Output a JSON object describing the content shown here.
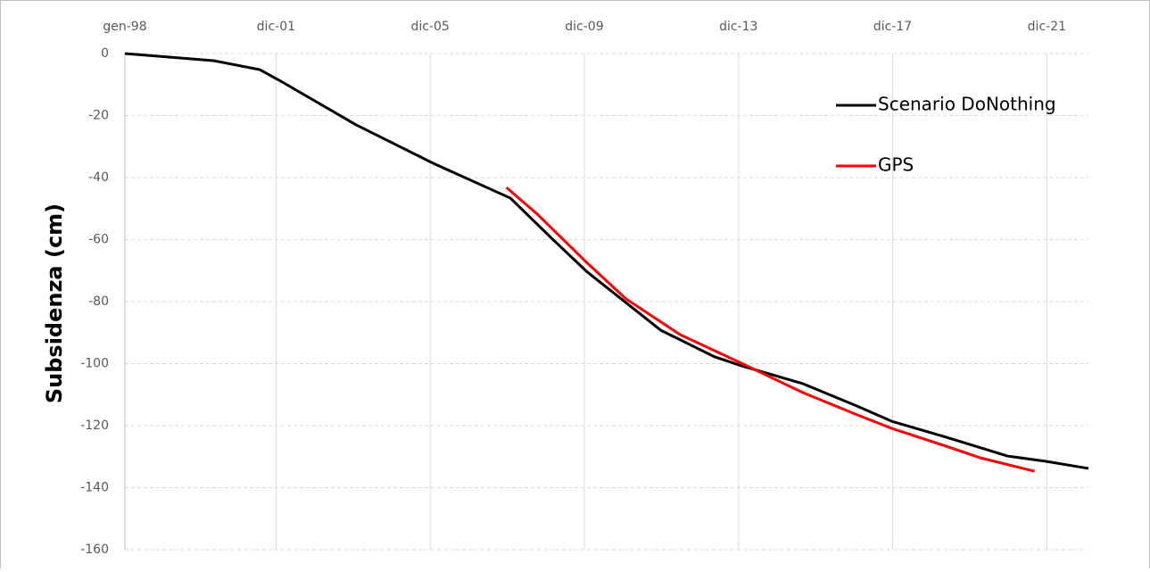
{
  "chart_data": {
    "type": "line",
    "ylabel": "Subsidenza (cm)",
    "xlim": [
      1998,
      2023
    ],
    "xticks": [
      {
        "value": 1998,
        "label": "gen-98"
      },
      {
        "value": 2001.92,
        "label": "dic-01"
      },
      {
        "value": 2005.92,
        "label": "dic-05"
      },
      {
        "value": 2009.92,
        "label": "dic-09"
      },
      {
        "value": 2013.92,
        "label": "dic-13"
      },
      {
        "value": 2017.92,
        "label": "dic-17"
      },
      {
        "value": 2021.92,
        "label": "dic-21"
      }
    ],
    "ylim": [
      -160,
      0
    ],
    "yticks": [
      -160,
      -140,
      -120,
      -100,
      -80,
      -60,
      -40,
      -20,
      0
    ],
    "grid": true,
    "legend": "upper right",
    "series": [
      {
        "name": "Scenario DoNothing",
        "color": "#000000",
        "x": [
          1998,
          2000.3,
          2001.5,
          2002.0,
          2004.0,
          2006.0,
          2008.0,
          2009.1,
          2010.0,
          2011.9,
          2013.3,
          2014.0,
          2015.6,
          2017.0,
          2017.9,
          2019.3,
          2020.9,
          2021.9,
          2023.0
        ],
        "values": [
          0,
          -2.3,
          -5.2,
          -8.6,
          -23,
          -35.4,
          -46.6,
          -59.9,
          -70.5,
          -89.2,
          -97.8,
          -100.7,
          -106.5,
          -113.7,
          -118.6,
          -123.7,
          -129.8,
          -131.5,
          -133.8
        ]
      },
      {
        "name": "GPS",
        "color": "#ff0000",
        "x": [
          2007.9,
          2008.7,
          2010.0,
          2011.0,
          2012.4,
          2014.0,
          2015.6,
          2017.0,
          2017.9,
          2019.3,
          2020.2,
          2021.6
        ],
        "values": [
          -43.2,
          -51.8,
          -67.6,
          -79.1,
          -90.6,
          -99.9,
          -109.4,
          -116.5,
          -120.9,
          -126.6,
          -130.4,
          -134.7
        ]
      }
    ]
  }
}
